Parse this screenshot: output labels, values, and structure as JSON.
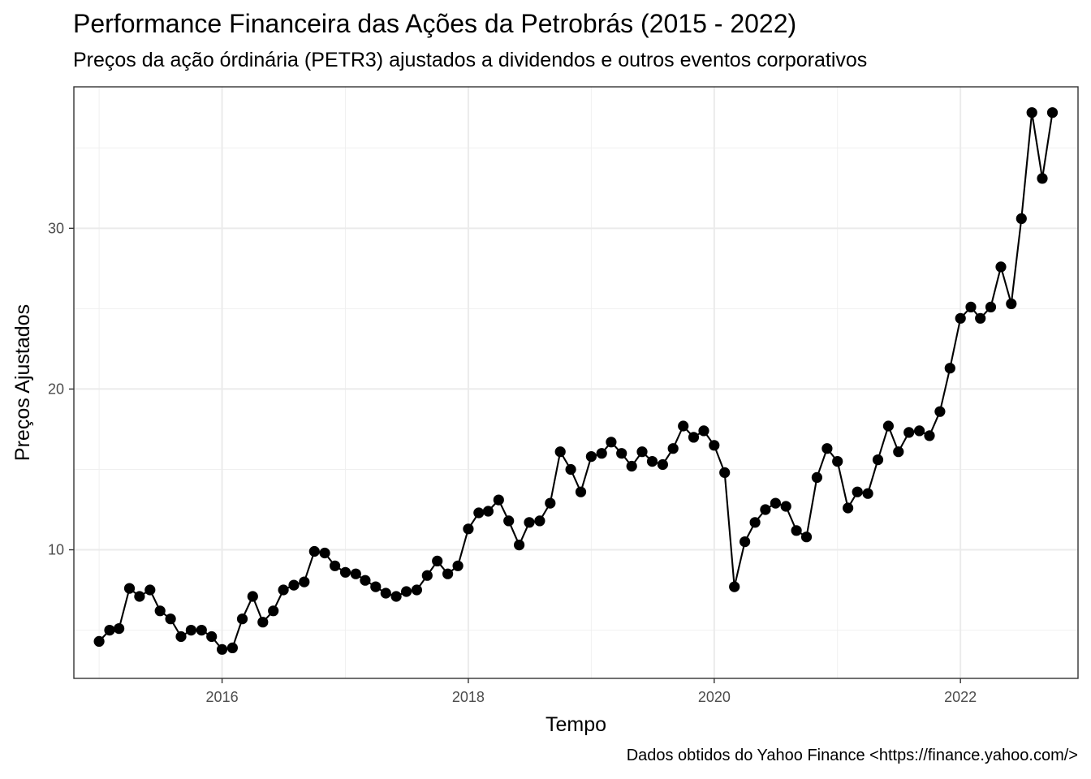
{
  "chart_data": {
    "type": "line",
    "title": "Performance Financeira das Ações da Petrobrás (2015 - 2022)",
    "subtitle": "Preços da ação órdinária (PETR3) ajustados a dividendos e outros eventos corporativos",
    "caption": "Dados obtidos do Yahoo Finance <https://finance.yahoo.com/>",
    "xlabel": "Tempo",
    "ylabel": "Preços Ajustados",
    "xlim": [
      "2014-10-18",
      "2022-12-16"
    ],
    "ylim": [
      2.0,
      38.8
    ],
    "x_ticks": [
      {
        "value": "2016-01-01",
        "label": "2016"
      },
      {
        "value": "2018-01-01",
        "label": "2018"
      },
      {
        "value": "2020-01-01",
        "label": "2020"
      },
      {
        "value": "2022-01-01",
        "label": "2022"
      }
    ],
    "y_ticks": [
      {
        "value": 10,
        "label": "10"
      },
      {
        "value": 20,
        "label": "20"
      },
      {
        "value": 30,
        "label": "30"
      }
    ],
    "grid": true,
    "markers": true,
    "series": [
      {
        "color": "#000000",
        "x": [
          "2015-01-01",
          "2015-02-01",
          "2015-03-01",
          "2015-04-01",
          "2015-05-01",
          "2015-06-01",
          "2015-07-01",
          "2015-08-01",
          "2015-09-01",
          "2015-10-01",
          "2015-11-01",
          "2015-12-01",
          "2016-01-01",
          "2016-02-01",
          "2016-03-01",
          "2016-04-01",
          "2016-05-01",
          "2016-06-01",
          "2016-07-01",
          "2016-08-01",
          "2016-09-01",
          "2016-10-01",
          "2016-11-01",
          "2016-12-01",
          "2017-01-01",
          "2017-02-01",
          "2017-03-01",
          "2017-04-01",
          "2017-05-01",
          "2017-06-01",
          "2017-07-01",
          "2017-08-01",
          "2017-09-01",
          "2017-10-01",
          "2017-11-01",
          "2017-12-01",
          "2018-01-01",
          "2018-02-01",
          "2018-03-01",
          "2018-04-01",
          "2018-05-01",
          "2018-06-01",
          "2018-07-01",
          "2018-08-01",
          "2018-09-01",
          "2018-10-01",
          "2018-11-01",
          "2018-12-01",
          "2019-01-01",
          "2019-02-01",
          "2019-03-01",
          "2019-04-01",
          "2019-05-01",
          "2019-06-01",
          "2019-07-01",
          "2019-08-01",
          "2019-09-01",
          "2019-10-01",
          "2019-11-01",
          "2019-12-01",
          "2020-01-01",
          "2020-02-01",
          "2020-03-01",
          "2020-04-01",
          "2020-05-01",
          "2020-06-01",
          "2020-07-01",
          "2020-08-01",
          "2020-09-01",
          "2020-10-01",
          "2020-11-01",
          "2020-12-01",
          "2021-01-01",
          "2021-02-01",
          "2021-03-01",
          "2021-04-01",
          "2021-05-01",
          "2021-06-01",
          "2021-07-01",
          "2021-08-01",
          "2021-09-01",
          "2021-10-01",
          "2021-11-01",
          "2021-12-01",
          "2022-01-01",
          "2022-02-01",
          "2022-03-01",
          "2022-04-01",
          "2022-05-01",
          "2022-06-01",
          "2022-07-01",
          "2022-08-01",
          "2022-09-01",
          "2022-10-01"
        ],
        "y": [
          4.3,
          5.0,
          5.1,
          7.6,
          7.1,
          7.5,
          6.2,
          5.7,
          4.6,
          5.0,
          5.0,
          4.6,
          3.8,
          3.9,
          5.7,
          7.1,
          5.5,
          6.2,
          7.5,
          7.8,
          8.0,
          9.9,
          9.8,
          9.0,
          8.6,
          8.5,
          8.1,
          7.7,
          7.3,
          7.1,
          7.4,
          7.5,
          8.4,
          9.3,
          8.5,
          9.0,
          11.3,
          12.3,
          12.4,
          13.1,
          11.8,
          10.3,
          11.7,
          11.8,
          12.9,
          16.1,
          15.0,
          13.6,
          15.8,
          16.0,
          16.7,
          16.0,
          15.2,
          16.1,
          15.5,
          15.3,
          16.3,
          17.7,
          17.0,
          17.4,
          16.5,
          14.8,
          7.7,
          10.5,
          11.7,
          12.5,
          12.9,
          12.7,
          11.2,
          10.8,
          14.5,
          16.3,
          15.5,
          12.6,
          13.6,
          13.5,
          15.6,
          17.7,
          16.1,
          17.3,
          17.4,
          17.1,
          18.6,
          21.3,
          24.4,
          25.1,
          24.4,
          25.1,
          27.6,
          25.3,
          30.6,
          37.2,
          33.1,
          37.2
        ]
      }
    ]
  }
}
